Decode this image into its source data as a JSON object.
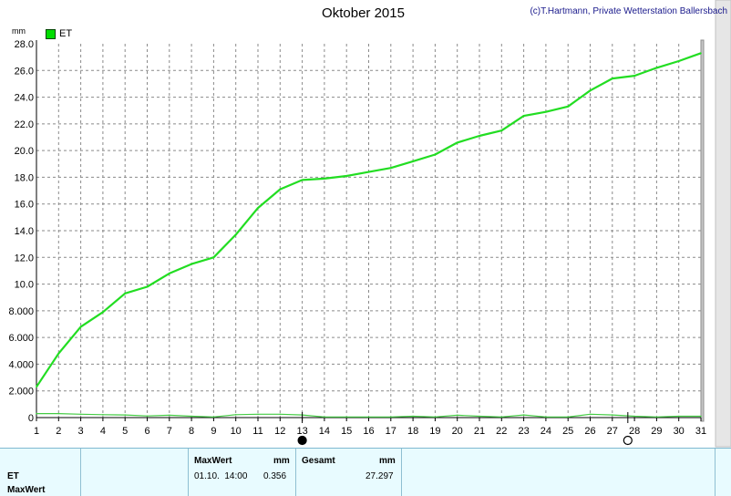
{
  "header": {
    "title": "Oktober 2015",
    "copyright": "(c)T.Hartmann, Private Wetterstation Ballersbach",
    "unit": "mm"
  },
  "legend": {
    "label": "ET",
    "color": "#00dd00"
  },
  "chart_data": {
    "type": "line",
    "title": "Oktober 2015",
    "ylabel": "mm",
    "xlim": [
      1,
      31
    ],
    "ylim": [
      0,
      28
    ],
    "grid": true,
    "legend_placement": "top-left",
    "x_ticks": [
      "1",
      "2",
      "3",
      "4",
      "5",
      "6",
      "7",
      "8",
      "9",
      "10",
      "11",
      "12",
      "13",
      "14",
      "15",
      "16",
      "17",
      "18",
      "19",
      "20",
      "21",
      "22",
      "23",
      "24",
      "25",
      "26",
      "27",
      "28",
      "29",
      "30",
      "31"
    ],
    "y_ticks": [
      "0",
      "2.000",
      "4.000",
      "6.000",
      "8.000",
      "10.0",
      "12.0",
      "14.0",
      "16.0",
      "18.0",
      "20.0",
      "22.0",
      "24.0",
      "26.0",
      "28.0"
    ],
    "series": [
      {
        "name": "ET",
        "color": "#22dd22",
        "x": [
          1,
          2,
          3,
          4,
          5,
          6,
          7,
          8,
          9,
          10,
          11,
          12,
          13,
          14,
          15,
          16,
          17,
          18,
          19,
          20,
          21,
          22,
          23,
          24,
          25,
          26,
          27,
          28,
          29,
          30,
          31
        ],
        "values": [
          2.3,
          4.8,
          6.8,
          7.9,
          9.3,
          9.8,
          10.8,
          11.5,
          12.0,
          13.7,
          15.7,
          17.1,
          17.8,
          17.9,
          18.1,
          18.4,
          18.7,
          19.2,
          19.7,
          20.6,
          21.1,
          21.5,
          22.6,
          22.9,
          23.3,
          24.5,
          25.4,
          25.6,
          26.2,
          26.7,
          27.3
        ]
      },
      {
        "color": "#44cc44",
        "x": [
          1,
          2,
          3,
          4,
          5,
          6,
          7,
          8,
          9,
          10,
          11,
          12,
          13,
          14,
          15,
          16,
          17,
          18,
          19,
          20,
          21,
          22,
          23,
          24,
          25,
          26,
          27,
          28,
          29,
          30,
          31
        ],
        "values": [
          0.3,
          0.3,
          0.25,
          0.22,
          0.2,
          0.12,
          0.18,
          0.1,
          0.05,
          0.22,
          0.25,
          0.25,
          0.2,
          0.05,
          0.05,
          0.05,
          0.05,
          0.1,
          0.05,
          0.18,
          0.1,
          0.05,
          0.2,
          0.05,
          0.05,
          0.25,
          0.2,
          0.1,
          0.05,
          0.1,
          0.1
        ]
      }
    ],
    "markers": [
      {
        "day": 13,
        "style": "filled"
      },
      {
        "day": 27.7,
        "style": "hollow"
      }
    ]
  },
  "table": {
    "row_label_1": "ET",
    "row_label_2": "MaxWert",
    "maxwert_header": "MaxWert",
    "maxwert_unit": "mm",
    "maxwert_time": "01.10.  14:00",
    "maxwert_value": "0.356",
    "gesamt_header": "Gesamt",
    "gesamt_unit": "mm",
    "gesamt_value": "27.297"
  }
}
